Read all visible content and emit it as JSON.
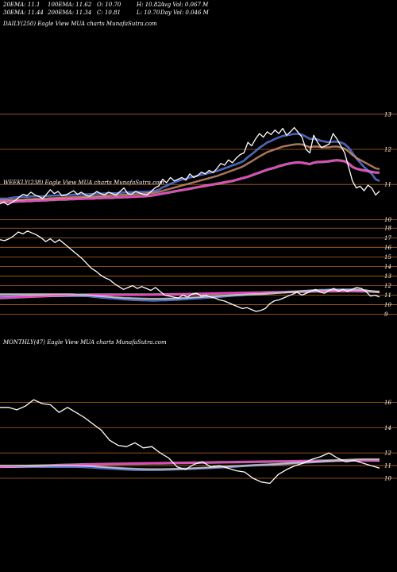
{
  "header": {
    "row1": [
      "20EMA: 11.1",
      "100EMA: 11.62",
      "O: 10.70",
      "H: 10.82",
      "Avg Vol: 0.067  M"
    ],
    "row2": [
      "30EMA: 11.44",
      "200EMA: 11.34",
      "C: 10.81",
      "L: 10.70",
      "Day Vol: 0.046  M"
    ]
  },
  "panels": {
    "daily": "DAILY(250) Eagle  View  MUA charts MunafaSutra.com",
    "weekly": "WEEKLY(238) Eagle  View  MUA charts MunafaSutra.com",
    "monthly": "MONTHLY(47) Eagle  View  MUA charts MunafaSutra.com"
  },
  "colors": {
    "grid": "#b5651d",
    "price": "#ffffff",
    "ema_fast": "#1f4fff",
    "ema_long": "#ff33cc",
    "ema_mid": "#cc6633",
    "ema_gray": "#bbbbbb"
  },
  "chart_data": [
    {
      "type": "line",
      "name": "daily",
      "ylim": [
        9.85,
        13.2
      ],
      "yticks": [
        13,
        12,
        11,
        10
      ],
      "series": [
        {
          "name": "price",
          "color": "#ffffff",
          "values": [
            10.45,
            10.5,
            10.42,
            10.48,
            10.55,
            10.65,
            10.72,
            10.68,
            10.78,
            10.7,
            10.66,
            10.6,
            10.72,
            10.85,
            10.74,
            10.8,
            10.68,
            10.7,
            10.76,
            10.82,
            10.72,
            10.78,
            10.7,
            10.66,
            10.72,
            10.8,
            10.74,
            10.7,
            10.78,
            10.74,
            10.7,
            10.8,
            10.9,
            10.74,
            10.72,
            10.8,
            10.76,
            10.72,
            10.7,
            10.8,
            10.9,
            10.96,
            11.15,
            11.05,
            11.2,
            11.1,
            11.15,
            11.2,
            11.12,
            11.3,
            11.2,
            11.25,
            11.35,
            11.3,
            11.4,
            11.34,
            11.45,
            11.6,
            11.55,
            11.7,
            11.62,
            11.75,
            11.85,
            11.9,
            12.2,
            12.1,
            12.3,
            12.45,
            12.35,
            12.5,
            12.42,
            12.55,
            12.45,
            12.6,
            12.4,
            12.5,
            12.62,
            12.48,
            12.35,
            12.0,
            11.9,
            12.4,
            12.2,
            12.05,
            12.1,
            12.15,
            12.45,
            12.3,
            12.1,
            11.9,
            11.5,
            11.1,
            10.9,
            10.95,
            10.82,
            10.98,
            10.9,
            10.7,
            10.81
          ]
        },
        {
          "name": "EMA fast",
          "color": "#1f4fff",
          "values": [
            10.6,
            10.6,
            10.6,
            10.62,
            10.63,
            10.64,
            10.65,
            10.65,
            10.66,
            10.66,
            10.66,
            10.66,
            10.67,
            10.68,
            10.68,
            10.69,
            10.69,
            10.7,
            10.7,
            10.71,
            10.71,
            10.72,
            10.72,
            10.72,
            10.73,
            10.74,
            10.74,
            10.74,
            10.75,
            10.75,
            10.75,
            10.76,
            10.78,
            10.78,
            10.78,
            10.79,
            10.79,
            10.79,
            10.79,
            10.8,
            10.82,
            10.85,
            10.92,
            10.96,
            11.02,
            11.06,
            11.1,
            11.14,
            11.16,
            11.2,
            11.22,
            11.25,
            11.28,
            11.3,
            11.33,
            11.35,
            11.38,
            11.42,
            11.46,
            11.5,
            11.54,
            11.58,
            11.62,
            11.68,
            11.78,
            11.86,
            11.95,
            12.05,
            12.12,
            12.2,
            12.24,
            12.3,
            12.34,
            12.38,
            12.4,
            12.42,
            12.44,
            12.44,
            12.42,
            12.36,
            12.3,
            12.3,
            12.28,
            12.24,
            12.22,
            12.2,
            12.22,
            12.22,
            12.2,
            12.15,
            12.05,
            11.9,
            11.75,
            11.62,
            11.5,
            11.4,
            11.3,
            11.15,
            11.1
          ]
        },
        {
          "name": "EMA long",
          "color": "#ff33cc",
          "values": [
            10.5,
            10.5,
            10.5,
            10.51,
            10.51,
            10.52,
            10.52,
            10.53,
            10.53,
            10.54,
            10.54,
            10.55,
            10.55,
            10.56,
            10.56,
            10.57,
            10.57,
            10.57,
            10.58,
            10.58,
            10.59,
            10.59,
            10.6,
            10.6,
            10.6,
            10.61,
            10.61,
            10.62,
            10.62,
            10.62,
            10.63,
            10.63,
            10.64,
            10.64,
            10.65,
            10.65,
            10.66,
            10.66,
            10.67,
            10.68,
            10.7,
            10.72,
            10.74,
            10.76,
            10.78,
            10.8,
            10.82,
            10.84,
            10.86,
            10.88,
            10.9,
            10.92,
            10.94,
            10.96,
            10.98,
            11.0,
            11.02,
            11.04,
            11.06,
            11.08,
            11.1,
            11.13,
            11.16,
            11.19,
            11.22,
            11.26,
            11.3,
            11.34,
            11.38,
            11.42,
            11.45,
            11.48,
            11.52,
            11.55,
            11.58,
            11.6,
            11.62,
            11.63,
            11.62,
            11.6,
            11.58,
            11.62,
            11.64,
            11.64,
            11.65,
            11.66,
            11.68,
            11.69,
            11.68,
            11.66,
            11.6,
            11.5,
            11.45,
            11.42,
            11.4,
            11.38,
            11.36,
            11.34,
            11.34
          ]
        },
        {
          "name": "EMA mid",
          "color": "#cc6633",
          "values": [
            10.55,
            10.55,
            10.55,
            10.56,
            10.56,
            10.57,
            10.57,
            10.58,
            10.58,
            10.59,
            10.59,
            10.6,
            10.6,
            10.61,
            10.61,
            10.62,
            10.62,
            10.63,
            10.63,
            10.64,
            10.64,
            10.65,
            10.65,
            10.66,
            10.66,
            10.67,
            10.67,
            10.68,
            10.68,
            10.69,
            10.69,
            10.7,
            10.71,
            10.71,
            10.72,
            10.72,
            10.73,
            10.73,
            10.74,
            10.75,
            10.77,
            10.79,
            10.82,
            10.85,
            10.88,
            10.91,
            10.94,
            10.97,
            11.0,
            11.03,
            11.06,
            11.09,
            11.12,
            11.15,
            11.18,
            11.21,
            11.24,
            11.28,
            11.32,
            11.36,
            11.4,
            11.44,
            11.48,
            11.53,
            11.6,
            11.66,
            11.73,
            11.8,
            11.86,
            11.92,
            11.96,
            12.0,
            12.04,
            12.08,
            12.1,
            12.12,
            12.14,
            12.15,
            12.14,
            12.1,
            12.06,
            12.08,
            12.08,
            12.06,
            12.06,
            12.06,
            12.08,
            12.08,
            12.06,
            12.02,
            11.94,
            11.84,
            11.76,
            11.7,
            11.64,
            11.58,
            11.52,
            11.46,
            11.44
          ]
        }
      ]
    },
    {
      "type": "line",
      "name": "weekly",
      "ylim": [
        8.8,
        18.6
      ],
      "yticks": [
        18,
        17,
        16,
        15,
        14,
        13,
        12,
        11,
        10,
        9
      ],
      "series": [
        {
          "name": "price",
          "color": "#ffffff",
          "values": [
            16.8,
            16.7,
            16.9,
            17.2,
            17.6,
            17.4,
            17.7,
            17.5,
            17.3,
            17.0,
            16.6,
            16.9,
            16.5,
            16.8,
            16.4,
            16.0,
            15.6,
            15.2,
            14.8,
            14.3,
            13.8,
            13.5,
            13.1,
            12.8,
            12.6,
            12.2,
            11.9,
            11.6,
            11.8,
            12.0,
            11.7,
            11.9,
            11.7,
            11.5,
            11.8,
            11.4,
            11.0,
            10.9,
            10.8,
            10.7,
            11.0,
            10.8,
            11.1,
            11.2,
            10.9,
            11.0,
            10.8,
            10.7,
            10.5,
            10.4,
            10.2,
            10.0,
            9.8,
            9.6,
            9.7,
            9.5,
            9.3,
            9.4,
            9.6,
            10.1,
            10.4,
            10.5,
            10.7,
            10.9,
            11.1,
            11.3,
            11.0,
            11.2,
            11.4,
            11.6,
            11.3,
            11.2,
            11.5,
            11.7,
            11.4,
            11.6,
            11.4,
            11.6,
            11.8,
            11.7,
            11.4,
            10.9,
            11.0,
            10.8
          ]
        },
        {
          "name": "EMA fast",
          "color": "#1f4fff",
          "values": [
            10.9,
            10.9,
            10.9,
            10.9,
            10.9,
            10.9,
            10.9,
            10.9,
            10.9,
            10.9,
            10.9,
            10.9,
            10.9,
            10.9,
            10.9,
            10.9,
            10.9,
            10.9,
            10.9,
            10.9,
            10.85,
            10.8,
            10.75,
            10.72,
            10.68,
            10.64,
            10.6,
            10.56,
            10.53,
            10.5,
            10.48,
            10.46,
            10.45,
            10.44,
            10.44,
            10.45,
            10.46,
            10.48,
            10.5,
            10.52,
            10.55,
            10.58,
            10.62,
            10.65,
            10.68,
            10.72,
            10.75,
            10.78,
            10.82,
            10.86,
            10.9,
            10.94,
            10.98,
            11.0,
            11.03,
            11.05,
            11.08,
            11.1,
            11.13,
            11.16,
            11.2,
            11.24,
            11.28,
            11.32,
            11.36,
            11.4,
            11.43,
            11.46,
            11.5,
            11.52,
            11.54,
            11.55,
            11.57,
            11.58,
            11.59,
            11.6,
            11.6,
            11.6,
            11.58,
            11.55,
            11.5,
            11.42,
            11.35,
            11.3
          ]
        },
        {
          "name": "EMA long",
          "color": "#ff33cc",
          "values": [
            10.7,
            10.72,
            10.74,
            10.76,
            10.78,
            10.8,
            10.82,
            10.84,
            10.86,
            10.88,
            10.9,
            10.92,
            10.94,
            10.96,
            10.98,
            11.0,
            11.01,
            11.02,
            11.03,
            11.04,
            11.05,
            11.05,
            11.05,
            11.05,
            11.05,
            11.05,
            11.05,
            11.05,
            11.05,
            11.05,
            11.05,
            11.05,
            11.06,
            11.06,
            11.07,
            11.07,
            11.08,
            11.08,
            11.09,
            11.1,
            11.1,
            11.11,
            11.12,
            11.13,
            11.14,
            11.15,
            11.16,
            11.17,
            11.18,
            11.19,
            11.2,
            11.21,
            11.22,
            11.23,
            11.24,
            11.25,
            11.26,
            11.27,
            11.28,
            11.29,
            11.3,
            11.31,
            11.32,
            11.33,
            11.34,
            11.35,
            11.36,
            11.37,
            11.38,
            11.39,
            11.4,
            11.4,
            11.41,
            11.41,
            11.42,
            11.42,
            11.42,
            11.42,
            11.42,
            11.41,
            11.4,
            11.38,
            11.36,
            11.34
          ]
        },
        {
          "name": "EMA gray",
          "color": "#bbbbbb",
          "values": [
            11.1,
            11.1,
            11.1,
            11.1,
            11.1,
            11.1,
            11.1,
            11.1,
            11.1,
            11.1,
            11.1,
            11.1,
            11.1,
            11.1,
            11.1,
            11.1,
            11.08,
            11.06,
            11.04,
            11.0,
            10.96,
            10.92,
            10.88,
            10.85,
            10.82,
            10.78,
            10.75,
            10.72,
            10.7,
            10.68,
            10.66,
            10.64,
            10.63,
            10.62,
            10.62,
            10.62,
            10.63,
            10.64,
            10.66,
            10.68,
            10.7,
            10.72,
            10.75,
            10.78,
            10.8,
            10.83,
            10.86,
            10.88,
            10.91,
            10.94,
            10.97,
            11.0,
            11.02,
            11.04,
            11.06,
            11.08,
            11.1,
            11.12,
            11.15,
            11.18,
            11.21,
            11.24,
            11.27,
            11.3,
            11.33,
            11.36,
            11.39,
            11.42,
            11.45,
            11.47,
            11.49,
            11.5,
            11.52,
            11.53,
            11.54,
            11.55,
            11.55,
            11.55,
            11.54,
            11.52,
            11.48,
            11.42,
            11.38,
            11.34
          ]
        }
      ]
    },
    {
      "type": "line",
      "name": "monthly",
      "ylim": [
        9.5,
        16.4
      ],
      "yticks": [
        16,
        14,
        12,
        11,
        10
      ],
      "series": [
        {
          "name": "price",
          "color": "#ffffff",
          "values": [
            15.6,
            15.6,
            15.4,
            15.7,
            16.2,
            15.9,
            15.8,
            15.2,
            15.6,
            15.2,
            14.8,
            14.3,
            13.8,
            13.0,
            12.6,
            12.5,
            12.8,
            12.4,
            12.5,
            12.0,
            11.6,
            10.9,
            10.7,
            11.1,
            11.3,
            10.9,
            11.0,
            10.8,
            10.6,
            10.5,
            10.0,
            9.7,
            9.6,
            10.3,
            10.7,
            11.0,
            11.2,
            11.5,
            11.7,
            12.0,
            11.6,
            11.3,
            11.4,
            11.2,
            11.0,
            10.8
          ]
        },
        {
          "name": "EMA fast",
          "color": "#1f4fff",
          "values": [
            10.9,
            10.9,
            10.9,
            10.9,
            10.9,
            10.9,
            10.9,
            10.9,
            10.9,
            10.9,
            10.88,
            10.84,
            10.8,
            10.76,
            10.72,
            10.68,
            10.66,
            10.65,
            10.65,
            10.66,
            10.68,
            10.7,
            10.72,
            10.75,
            10.78,
            10.82,
            10.85,
            10.88,
            10.92,
            10.96,
            11.0,
            11.03,
            11.06,
            11.1,
            11.14,
            11.18,
            11.22,
            11.26,
            11.3,
            11.34,
            11.38,
            11.4,
            11.42,
            11.42,
            11.4,
            11.38
          ]
        },
        {
          "name": "EMA long",
          "color": "#ff33cc",
          "values": [
            10.9,
            10.92,
            10.94,
            10.96,
            10.98,
            11.0,
            11.02,
            11.04,
            11.06,
            11.08,
            11.1,
            11.11,
            11.12,
            11.13,
            11.14,
            11.15,
            11.16,
            11.17,
            11.18,
            11.19,
            11.2,
            11.21,
            11.22,
            11.23,
            11.24,
            11.25,
            11.26,
            11.27,
            11.28,
            11.29,
            11.3,
            11.31,
            11.32,
            11.33,
            11.34,
            11.35,
            11.36,
            11.37,
            11.38,
            11.39,
            11.4,
            11.41,
            11.42,
            11.42,
            11.42,
            11.42
          ]
        },
        {
          "name": "EMA gray",
          "color": "#bbbbbb",
          "values": [
            11.0,
            11.0,
            11.0,
            11.0,
            11.0,
            11.0,
            11.0,
            11.0,
            11.0,
            11.0,
            10.98,
            10.95,
            10.9,
            10.86,
            10.82,
            10.78,
            10.75,
            10.73,
            10.72,
            10.72,
            10.73,
            10.75,
            10.77,
            10.8,
            10.83,
            10.86,
            10.9,
            10.93,
            10.97,
            11.0,
            11.04,
            11.07,
            11.1,
            11.14,
            11.18,
            11.22,
            11.26,
            11.3,
            11.34,
            11.38,
            11.42,
            11.45,
            11.48,
            11.5,
            11.5,
            11.5
          ]
        }
      ]
    }
  ]
}
